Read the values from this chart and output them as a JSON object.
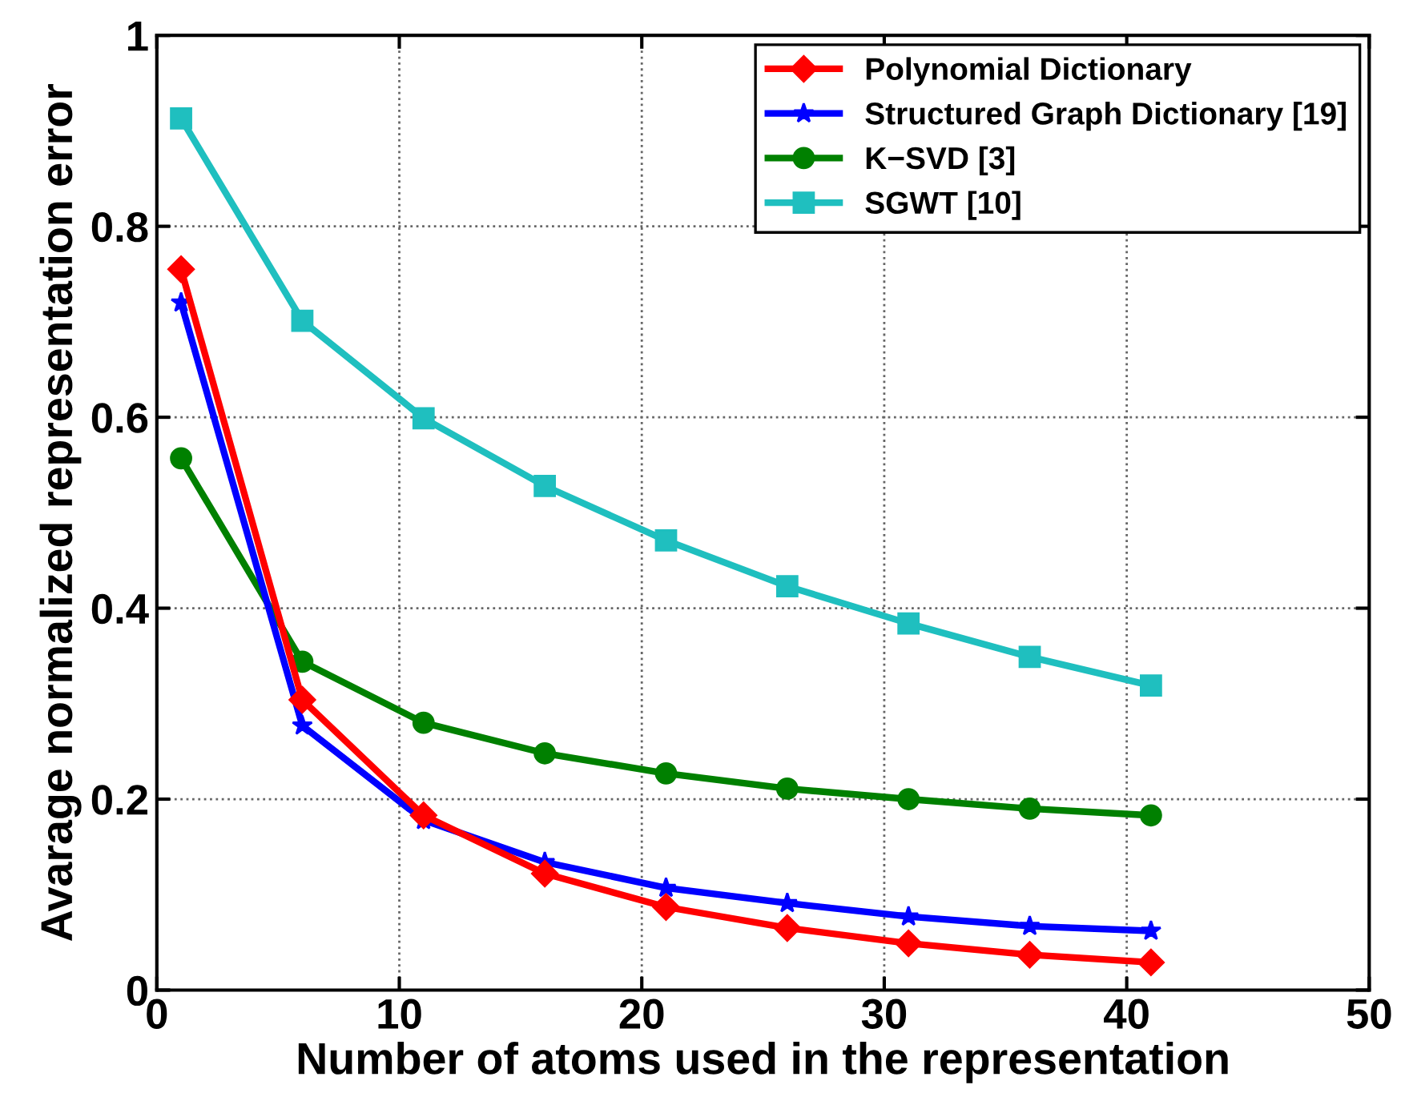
{
  "chart_data": {
    "type": "line",
    "xlabel": "Number of atoms used in the representation",
    "ylabel": "Avarage normalized representation error",
    "x": [
      1,
      6,
      11,
      16,
      21,
      26,
      31,
      36,
      41
    ],
    "series": [
      {
        "name": "Polynomial Dictionary",
        "color": "#ff0000",
        "marker": "diamond",
        "values": [
          0.755,
          0.304,
          0.183,
          0.122,
          0.087,
          0.065,
          0.049,
          0.037,
          0.029
        ]
      },
      {
        "name": "Structured Graph Dictionary [19]",
        "color": "#0000ff",
        "marker": "star",
        "values": [
          0.72,
          0.277,
          0.178,
          0.134,
          0.107,
          0.091,
          0.077,
          0.067,
          0.062
        ]
      },
      {
        "name": "K−SVD [3]",
        "color": "#008000",
        "marker": "circle",
        "values": [
          0.557,
          0.344,
          0.28,
          0.248,
          0.227,
          0.211,
          0.2,
          0.19,
          0.183
        ]
      },
      {
        "name": "SGWT [10]",
        "color": "#1fbfbf",
        "marker": "square",
        "values": [
          0.913,
          0.701,
          0.599,
          0.528,
          0.471,
          0.423,
          0.384,
          0.349,
          0.319
        ]
      }
    ],
    "xlim": [
      0,
      50
    ],
    "xticks": [
      0,
      10,
      20,
      30,
      40,
      50
    ],
    "ylim": [
      0,
      1
    ],
    "yticks": [
      0,
      0.2,
      0.4,
      0.6,
      0.8,
      1
    ],
    "grid": true,
    "legend": "top right",
    "line_style": "solid"
  }
}
